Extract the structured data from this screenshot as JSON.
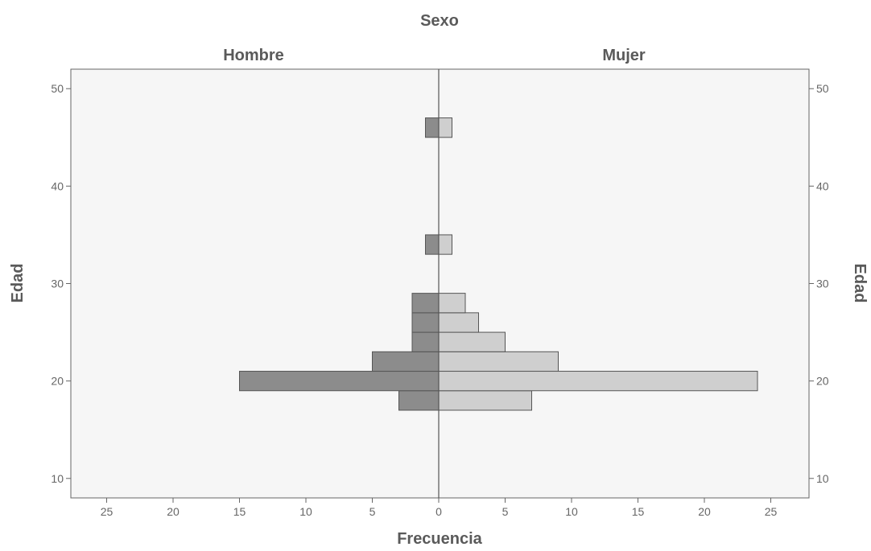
{
  "chart_data": {
    "type": "bar",
    "orientation": "horizontal",
    "subtype": "population-pyramid",
    "title": "Sexo",
    "xlabel": "Frecuencia",
    "ylabel": "Edad",
    "panels": [
      "Hombre",
      "Mujer"
    ],
    "x_ticks": [
      25,
      20,
      15,
      10,
      5,
      0,
      5,
      10,
      15,
      20,
      25
    ],
    "y_ticks": [
      10,
      20,
      30,
      40,
      50
    ],
    "ylim": [
      8,
      52
    ],
    "xlim": [
      -28,
      28
    ],
    "grid": false,
    "bin_width": 2,
    "series": [
      {
        "name": "Hombre",
        "color": "#8c8c8c",
        "bins": [
          {
            "from": 17,
            "to": 19,
            "value": 3
          },
          {
            "from": 19,
            "to": 21,
            "value": 15
          },
          {
            "from": 21,
            "to": 23,
            "value": 5
          },
          {
            "from": 23,
            "to": 25,
            "value": 2
          },
          {
            "from": 25,
            "to": 27,
            "value": 2
          },
          {
            "from": 27,
            "to": 29,
            "value": 2
          },
          {
            "from": 33,
            "to": 35,
            "value": 1
          },
          {
            "from": 45,
            "to": 47,
            "value": 1
          }
        ]
      },
      {
        "name": "Mujer",
        "color": "#cfcfcf",
        "bins": [
          {
            "from": 17,
            "to": 19,
            "value": 7
          },
          {
            "from": 19,
            "to": 21,
            "value": 24
          },
          {
            "from": 21,
            "to": 23,
            "value": 9
          },
          {
            "from": 23,
            "to": 25,
            "value": 5
          },
          {
            "from": 25,
            "to": 27,
            "value": 3
          },
          {
            "from": 27,
            "to": 29,
            "value": 2
          },
          {
            "from": 33,
            "to": 35,
            "value": 1
          },
          {
            "from": 45,
            "to": 47,
            "value": 1
          }
        ]
      }
    ]
  }
}
